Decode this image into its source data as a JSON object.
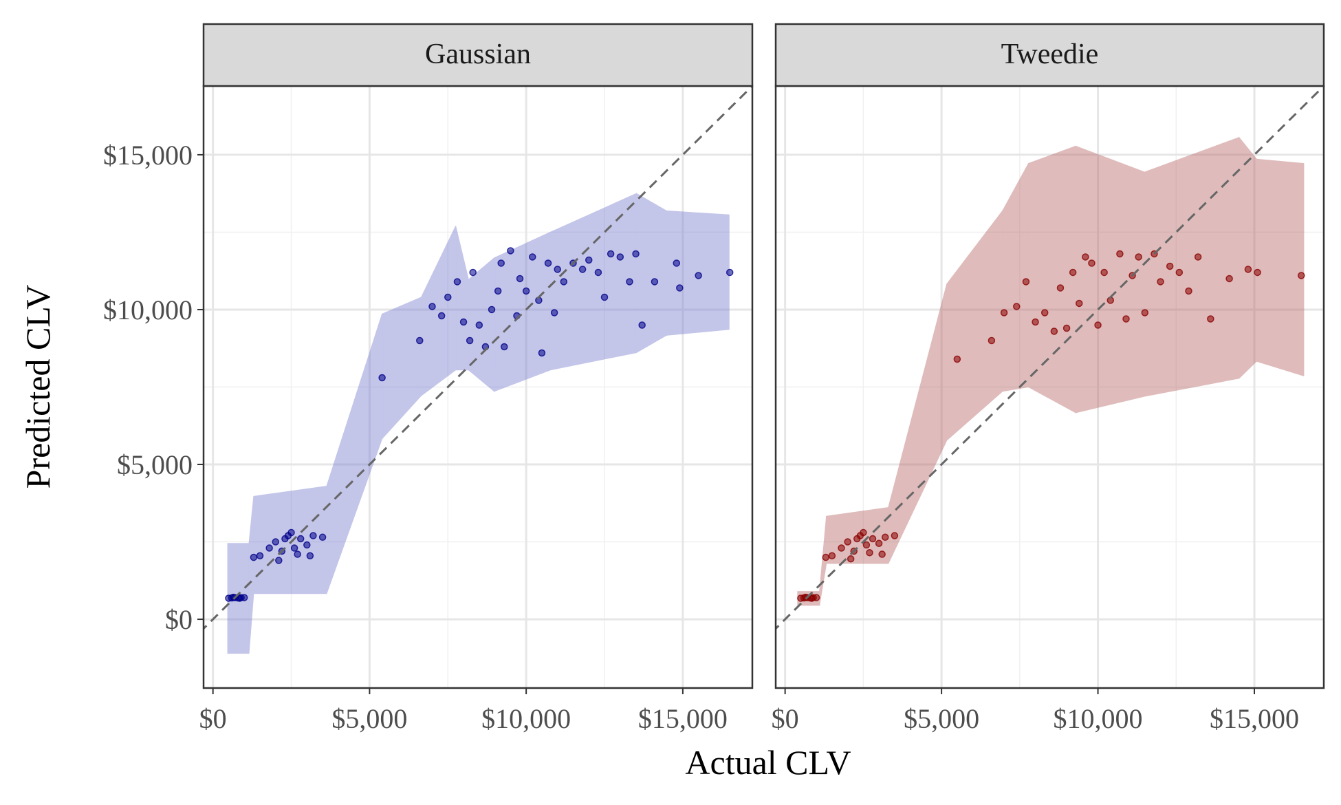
{
  "xlabel": "Actual CLV",
  "ylabel": "Predicted CLV",
  "chart_data": [
    {
      "type": "scatter",
      "title": "Gaussian",
      "color": "#00008b",
      "band_color": "#7b80d0",
      "diagonal": true,
      "grid": true,
      "xlim": [
        -300,
        17220
      ],
      "ylim": [
        -2220,
        17220
      ],
      "xticks": [
        {
          "value": 0,
          "label": "$0"
        },
        {
          "value": 5000,
          "label": "$5,000"
        },
        {
          "value": 10000,
          "label": "$10,000"
        },
        {
          "value": 15000,
          "label": "$15,000"
        }
      ],
      "yticks": [
        {
          "value": 0,
          "label": "$0"
        },
        {
          "value": 5000,
          "label": "$5,000"
        },
        {
          "value": 10000,
          "label": "$10,000"
        },
        {
          "value": 15000,
          "label": "$15,000"
        }
      ],
      "xminor": [
        2500,
        7500,
        12500
      ],
      "yminor": [
        2500,
        7500,
        12500
      ],
      "band": {
        "x": [
          470,
          1150,
          1300,
          3630,
          5400,
          6650,
          7750,
          8160,
          8980,
          10770,
          13520,
          14480,
          16480
        ],
        "lower": [
          -1100,
          -1100,
          830,
          830,
          5830,
          7220,
          8050,
          8050,
          7360,
          8050,
          8610,
          9170,
          9360
        ],
        "upper": [
          2450,
          2450,
          3970,
          4300,
          9860,
          10400,
          12700,
          10970,
          11670,
          12500,
          13750,
          13190,
          13060
        ]
      },
      "x": [
        500,
        600,
        650,
        700,
        800,
        850,
        900,
        1000,
        1300,
        1500,
        1800,
        2000,
        2100,
        2200,
        2300,
        2400,
        2500,
        2600,
        2700,
        2800,
        3000,
        3100,
        3200,
        3500,
        5400,
        6600,
        7000,
        7300,
        7500,
        7800,
        8000,
        8200,
        8300,
        8500,
        8700,
        8900,
        9100,
        9200,
        9300,
        9500,
        9700,
        9800,
        10000,
        10200,
        10400,
        10500,
        10700,
        10900,
        11000,
        11200,
        11500,
        11800,
        12000,
        12300,
        12500,
        12700,
        13000,
        13300,
        13500,
        13700,
        14100,
        14800,
        14900,
        15500,
        16500
      ],
      "y": [
        680,
        690,
        710,
        700,
        690,
        680,
        700,
        700,
        2000,
        2050,
        2300,
        2500,
        1900,
        2200,
        2600,
        2700,
        2800,
        2300,
        2100,
        2600,
        2400,
        2050,
        2700,
        2650,
        7800,
        9000,
        10100,
        9800,
        10400,
        10900,
        9600,
        9000,
        11200,
        9500,
        8800,
        10000,
        10600,
        11500,
        8800,
        11900,
        9800,
        11000,
        10600,
        11700,
        10300,
        8600,
        11500,
        9900,
        11300,
        10900,
        11500,
        11300,
        11600,
        11200,
        10400,
        11800,
        11700,
        10900,
        11800,
        9500,
        10900,
        11500,
        10700,
        11100,
        11200
      ]
    },
    {
      "type": "scatter",
      "title": "Tweedie",
      "color": "#8b0000",
      "band_color": "#b96a6a",
      "diagonal": true,
      "grid": true,
      "xlim": [
        -300,
        17220
      ],
      "ylim": [
        -2220,
        17220
      ],
      "xticks": [
        {
          "value": 0,
          "label": "$0"
        },
        {
          "value": 5000,
          "label": "$5,000"
        },
        {
          "value": 10000,
          "label": "$10,000"
        },
        {
          "value": 15000,
          "label": "$15,000"
        }
      ],
      "yticks": [
        0,
        5000,
        10000,
        15000
      ],
      "xminor": [
        2500,
        7500,
        12500
      ],
      "yminor": [
        2500,
        7500,
        12500
      ],
      "band": {
        "x": [
          400,
          1100,
          1320,
          3300,
          5170,
          6950,
          7780,
          9290,
          11490,
          14510,
          15070,
          16580
        ],
        "lower": [
          450,
          450,
          1800,
          1800,
          5780,
          7360,
          7500,
          6670,
          7200,
          7780,
          8330,
          7860
        ],
        "upper": [
          900,
          900,
          3330,
          3610,
          10830,
          13190,
          14720,
          15280,
          14440,
          15560,
          14860,
          14720
        ]
      },
      "x": [
        500,
        600,
        650,
        700,
        800,
        850,
        900,
        1000,
        1300,
        1500,
        1800,
        2000,
        2100,
        2200,
        2300,
        2400,
        2500,
        2600,
        2700,
        2800,
        3000,
        3100,
        3200,
        3500,
        5500,
        6600,
        7000,
        7400,
        7700,
        8000,
        8300,
        8600,
        8800,
        9000,
        9200,
        9400,
        9600,
        9800,
        10000,
        10200,
        10400,
        10700,
        10900,
        11100,
        11300,
        11500,
        11800,
        12000,
        12300,
        12600,
        12900,
        13200,
        13600,
        14200,
        14800,
        15100,
        16500
      ],
      "y": [
        680,
        690,
        710,
        700,
        690,
        680,
        700,
        700,
        2000,
        2050,
        2300,
        2500,
        1950,
        2200,
        2600,
        2700,
        2800,
        2400,
        2150,
        2600,
        2450,
        2100,
        2650,
        2700,
        8400,
        9000,
        9900,
        10100,
        10900,
        9600,
        9900,
        9300,
        10700,
        9400,
        11200,
        10200,
        11700,
        11500,
        9500,
        11200,
        10300,
        11800,
        9700,
        11100,
        11700,
        9900,
        11800,
        10900,
        11400,
        11200,
        10600,
        11700,
        9700,
        11000,
        11300,
        11200,
        11100
      ]
    }
  ]
}
